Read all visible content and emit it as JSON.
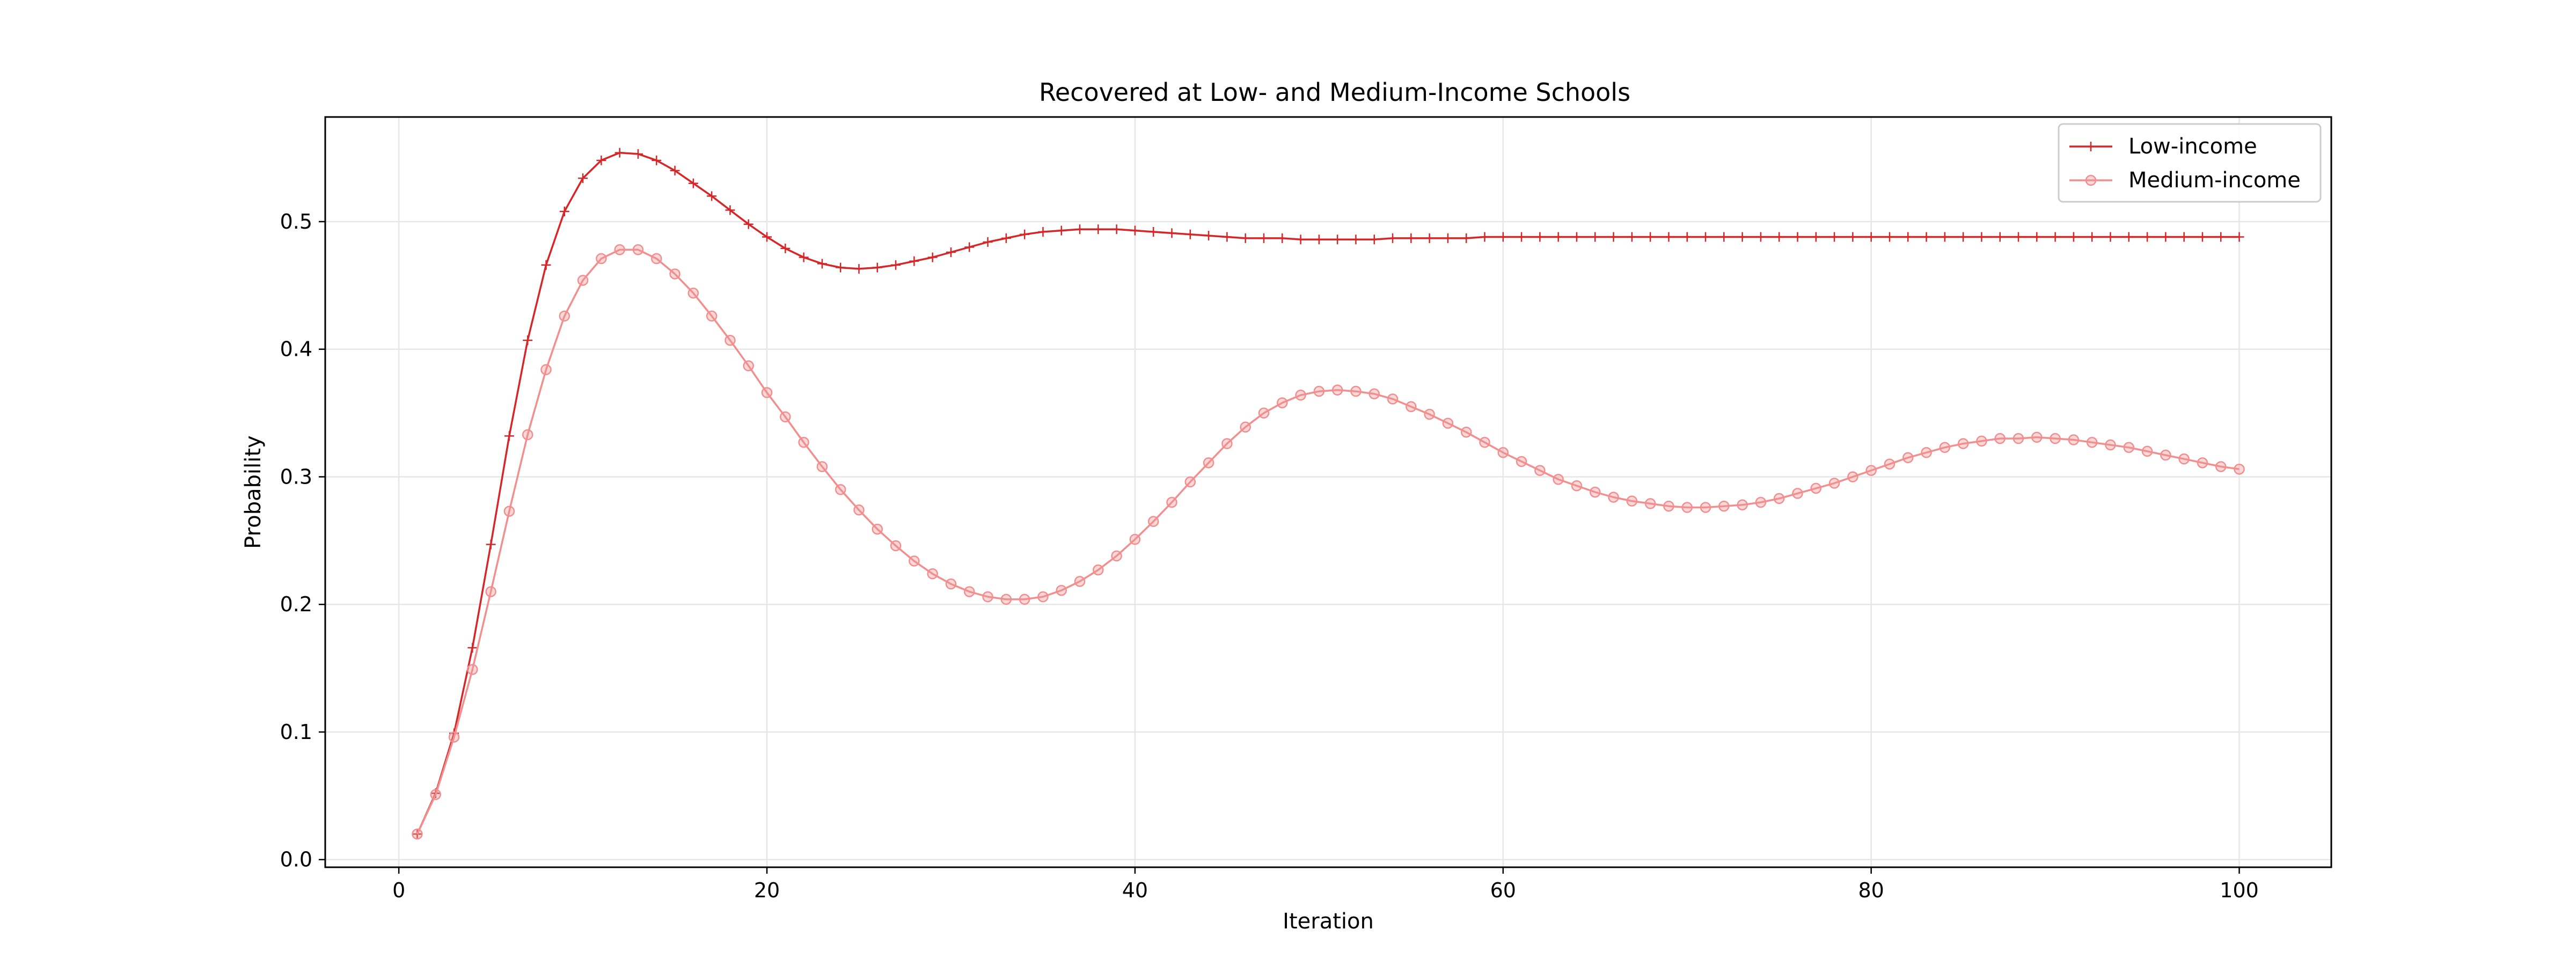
{
  "chart_data": {
    "type": "line",
    "title": "Recovered at Low- and Medium-Income Schools",
    "xlabel": "Iteration",
    "ylabel": "Probability",
    "xlim": [
      -4,
      105
    ],
    "ylim": [
      -0.006,
      0.582
    ],
    "xticks": [
      0,
      20,
      40,
      60,
      80,
      100
    ],
    "xtick_labels": [
      "0",
      "20",
      "40",
      "60",
      "80",
      "100"
    ],
    "yticks": [
      0.0,
      0.1,
      0.2,
      0.3,
      0.4,
      0.5
    ],
    "ytick_labels": [
      "0.0",
      "0.1",
      "0.2",
      "0.3",
      "0.4",
      "0.5"
    ],
    "grid": true,
    "legend_position": "top-right",
    "x": [
      1,
      2,
      3,
      4,
      5,
      6,
      7,
      8,
      9,
      10,
      11,
      12,
      13,
      14,
      15,
      16,
      17,
      18,
      19,
      20,
      21,
      22,
      23,
      24,
      25,
      26,
      27,
      28,
      29,
      30,
      31,
      32,
      33,
      34,
      35,
      36,
      37,
      38,
      39,
      40,
      41,
      42,
      43,
      44,
      45,
      46,
      47,
      48,
      49,
      50,
      51,
      52,
      53,
      54,
      55,
      56,
      57,
      58,
      59,
      60,
      61,
      62,
      63,
      64,
      65,
      66,
      67,
      68,
      69,
      70,
      71,
      72,
      73,
      74,
      75,
      76,
      77,
      78,
      79,
      80,
      81,
      82,
      83,
      84,
      85,
      86,
      87,
      88,
      89,
      90,
      91,
      92,
      93,
      94,
      95,
      96,
      97,
      98,
      99,
      100
    ],
    "series": [
      {
        "name": "Low-income",
        "color": "#d62728",
        "marker": "plus",
        "values": [
          0.02,
          0.052,
          0.099,
          0.166,
          0.247,
          0.332,
          0.407,
          0.466,
          0.508,
          0.534,
          0.548,
          0.554,
          0.553,
          0.548,
          0.54,
          0.53,
          0.52,
          0.509,
          0.498,
          0.488,
          0.479,
          0.472,
          0.467,
          0.464,
          0.463,
          0.464,
          0.466,
          0.469,
          0.472,
          0.476,
          0.48,
          0.484,
          0.487,
          0.49,
          0.492,
          0.493,
          0.494,
          0.494,
          0.494,
          0.493,
          0.492,
          0.491,
          0.49,
          0.489,
          0.488,
          0.487,
          0.487,
          0.487,
          0.486,
          0.486,
          0.486,
          0.486,
          0.486,
          0.487,
          0.487,
          0.487,
          0.487,
          0.487,
          0.488,
          0.488,
          0.488,
          0.488,
          0.488,
          0.488,
          0.488,
          0.488,
          0.488,
          0.488,
          0.488,
          0.488,
          0.488,
          0.488,
          0.488,
          0.488,
          0.488,
          0.488,
          0.488,
          0.488,
          0.488,
          0.488,
          0.488,
          0.488,
          0.488,
          0.488,
          0.488,
          0.488,
          0.488,
          0.488,
          0.488,
          0.488,
          0.488,
          0.488,
          0.488,
          0.488,
          0.488,
          0.488,
          0.488,
          0.488,
          0.488,
          0.488
        ]
      },
      {
        "name": "Medium-income",
        "color": "#f28e8e",
        "marker": "circle",
        "values": [
          0.02,
          0.051,
          0.096,
          0.149,
          0.21,
          0.273,
          0.333,
          0.384,
          0.426,
          0.454,
          0.471,
          0.478,
          0.478,
          0.471,
          0.459,
          0.444,
          0.426,
          0.407,
          0.387,
          0.366,
          0.347,
          0.327,
          0.308,
          0.29,
          0.274,
          0.259,
          0.246,
          0.234,
          0.224,
          0.216,
          0.21,
          0.206,
          0.204,
          0.204,
          0.206,
          0.211,
          0.218,
          0.227,
          0.238,
          0.251,
          0.265,
          0.28,
          0.296,
          0.311,
          0.326,
          0.339,
          0.35,
          0.358,
          0.364,
          0.367,
          0.368,
          0.367,
          0.365,
          0.361,
          0.355,
          0.349,
          0.342,
          0.335,
          0.327,
          0.319,
          0.312,
          0.305,
          0.298,
          0.293,
          0.288,
          0.284,
          0.281,
          0.279,
          0.277,
          0.276,
          0.276,
          0.277,
          0.278,
          0.28,
          0.283,
          0.287,
          0.291,
          0.295,
          0.3,
          0.305,
          0.31,
          0.315,
          0.319,
          0.323,
          0.326,
          0.328,
          0.33,
          0.33,
          0.331,
          0.33,
          0.329,
          0.327,
          0.325,
          0.323,
          0.32,
          0.317,
          0.314,
          0.311,
          0.308,
          0.306
        ]
      }
    ]
  }
}
